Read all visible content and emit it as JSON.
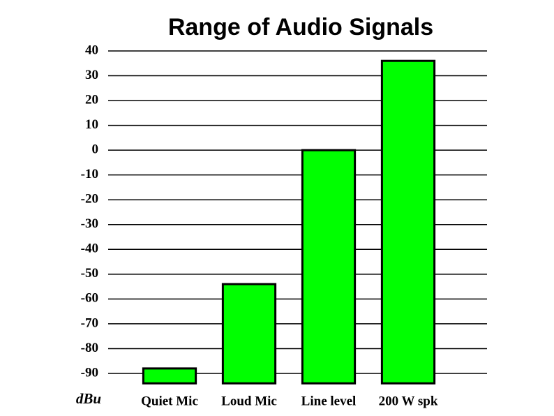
{
  "chart_data": {
    "type": "bar",
    "title": "Range of Audio Signals",
    "ylabel": "dBu",
    "categories": [
      "Quiet Mic",
      "Loud Mic",
      "Line level",
      "200 W spk"
    ],
    "values": [
      -88,
      -54,
      0,
      36
    ],
    "color": "#00ff00",
    "ylim": [
      -94,
      40
    ],
    "yticks": [
      40,
      30,
      20,
      10,
      0,
      -10,
      -20,
      -30,
      -40,
      -50,
      -60,
      -70,
      -80,
      -90
    ],
    "grid": true
  }
}
